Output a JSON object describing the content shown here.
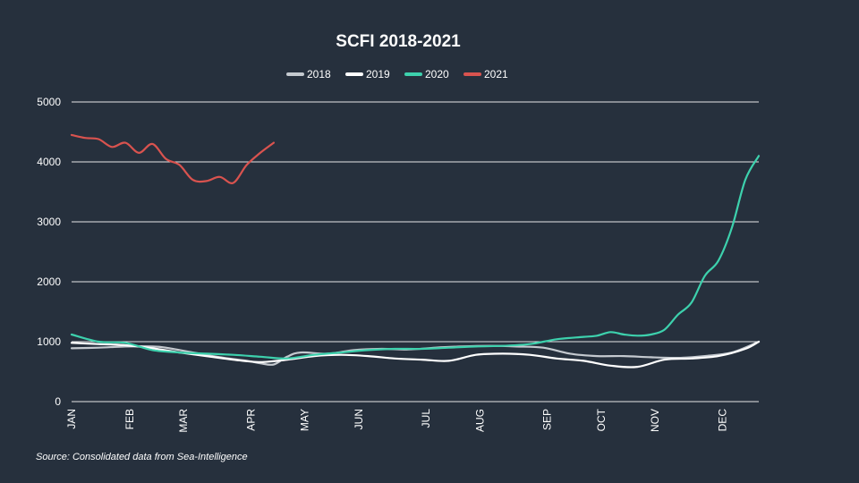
{
  "colors": {
    "background": "#26303d",
    "grid": "#e6e6e6",
    "text": "#ffffff",
    "s2018": "#c4c9cf",
    "s2019": "#ffffff",
    "s2020": "#3dd1ad",
    "s2021": "#d9534f"
  },
  "source": "Source: Consolidated data from Sea-Intelligence",
  "chart_data": {
    "type": "line",
    "title": "SCFI 2018-2021",
    "xlabel": "",
    "ylabel": "",
    "ylim": [
      0,
      5000
    ],
    "yticks": [
      0,
      1000,
      2000,
      3000,
      4000,
      5000
    ],
    "grid": true,
    "legend_position": "top-center",
    "x_unit": "week of year",
    "xlim": [
      1,
      52
    ],
    "months": [
      {
        "label": "JAN",
        "week": 1
      },
      {
        "label": "FEB",
        "week": 5.3
      },
      {
        "label": "MAR",
        "week": 9.3
      },
      {
        "label": "APR",
        "week": 14.3
      },
      {
        "label": "MAY",
        "week": 18.3
      },
      {
        "label": "JUN",
        "week": 22.3
      },
      {
        "label": "JUL",
        "week": 27.3
      },
      {
        "label": "AUG",
        "week": 31.3
      },
      {
        "label": "SEP",
        "week": 36.3
      },
      {
        "label": "OCT",
        "week": 40.3
      },
      {
        "label": "NOV",
        "week": 44.3
      },
      {
        "label": "DEC",
        "week": 49.3
      }
    ],
    "series": [
      {
        "name": "2018",
        "x": [
          1,
          3,
          5,
          7,
          8,
          10,
          12,
          14,
          15,
          16,
          17,
          18,
          20,
          22,
          24,
          26,
          28,
          30,
          32,
          34,
          36,
          38,
          40,
          42,
          44,
          46,
          48,
          50,
          52
        ],
        "values": [
          890,
          900,
          920,
          920,
          900,
          820,
          740,
          680,
          640,
          620,
          750,
          820,
          800,
          860,
          880,
          870,
          900,
          920,
          930,
          920,
          900,
          800,
          760,
          760,
          740,
          730,
          760,
          820,
          1000
        ]
      },
      {
        "name": "2019",
        "x": [
          1,
          3,
          5,
          7,
          9,
          11,
          13,
          15,
          17,
          19,
          21,
          23,
          25,
          27,
          29,
          31,
          33,
          35,
          37,
          39,
          41,
          43,
          45,
          47,
          49,
          51,
          52
        ],
        "values": [
          980,
          960,
          940,
          890,
          820,
          760,
          700,
          660,
          700,
          760,
          780,
          760,
          720,
          700,
          680,
          780,
          800,
          780,
          720,
          680,
          600,
          580,
          700,
          720,
          760,
          880,
          1000
        ]
      },
      {
        "name": "2020",
        "x": [
          1,
          3,
          5,
          7,
          9,
          11,
          13,
          15,
          17,
          19,
          21,
          23,
          25,
          27,
          29,
          31,
          33,
          35,
          37,
          39,
          40,
          41,
          42,
          43,
          44,
          45,
          46,
          47,
          48,
          49,
          50,
          51,
          52
        ],
        "values": [
          1120,
          1000,
          980,
          860,
          820,
          800,
          780,
          750,
          720,
          780,
          820,
          860,
          880,
          880,
          900,
          920,
          930,
          960,
          1040,
          1080,
          1100,
          1160,
          1120,
          1100,
          1120,
          1200,
          1450,
          1650,
          2100,
          2350,
          2900,
          3700,
          4100
        ]
      },
      {
        "name": "2021",
        "x": [
          1,
          2,
          3,
          4,
          5,
          6,
          7,
          8,
          9,
          10,
          11,
          12,
          13,
          14,
          15,
          16
        ],
        "values": [
          4450,
          4400,
          4380,
          4250,
          4320,
          4150,
          4300,
          4050,
          3950,
          3700,
          3680,
          3750,
          3650,
          3950,
          4150,
          4320
        ]
      }
    ]
  }
}
